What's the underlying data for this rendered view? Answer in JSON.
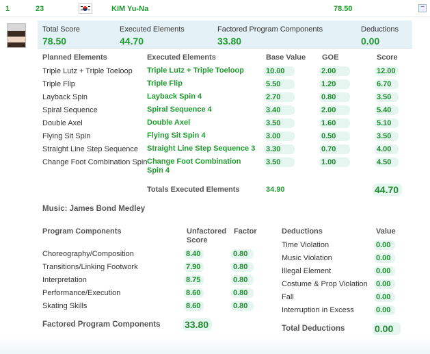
{
  "header": {
    "rank": "1",
    "start": "23",
    "skater": "KIM Yu-Na",
    "total": "78.50"
  },
  "summary": {
    "labels": [
      "Total Score",
      "Executed Elements",
      "Factored Program Components",
      "Deductions"
    ],
    "values": [
      "78.50",
      "44.70",
      "33.80",
      "0.00"
    ]
  },
  "elements": {
    "columns": [
      "Planned Elements",
      "Executed Elements",
      "Base Value",
      "GOE",
      "Score"
    ],
    "rows": [
      {
        "planned": "Triple Lutz + Triple Toeloop",
        "executed": "Triple Lutz + Triple Toeloop",
        "base": "10.00",
        "goe": "2.00",
        "score": "12.00"
      },
      {
        "planned": "Triple Flip",
        "executed": "Triple Flip",
        "base": "5.50",
        "goe": "1.20",
        "score": "6.70"
      },
      {
        "planned": "Layback Spin",
        "executed": "Layback Spin 4",
        "base": "2.70",
        "goe": "0.80",
        "score": "3.50"
      },
      {
        "planned": "Spiral Sequence",
        "executed": "Spiral Sequence 4",
        "base": "3.40",
        "goe": "2.00",
        "score": "5.40"
      },
      {
        "planned": "Double Axel",
        "executed": "Double Axel",
        "base": "3.50",
        "goe": "1.60",
        "score": "5.10"
      },
      {
        "planned": "Flying Sit Spin",
        "executed": "Flying Sit Spin 4",
        "base": "3.00",
        "goe": "0.50",
        "score": "3.50"
      },
      {
        "planned": "Straight Line Step Sequence",
        "executed": "Straight Line Step Sequence 3",
        "base": "3.30",
        "goe": "0.70",
        "score": "4.00"
      },
      {
        "planned": "Change Foot Combination Spin",
        "executed": "Change Foot Combination",
        "executed2": "Spin 4",
        "base": "3.50",
        "goe": "1.00",
        "score": "4.50"
      }
    ],
    "totals": {
      "label": "Totals Executed Elements",
      "base": "34.90",
      "score": "44.70"
    }
  },
  "music": "Music: James Bond Medley",
  "components": {
    "header": "Program Components",
    "unfactored_header": "Unfactored",
    "unfactored_header2": "Score",
    "factor_header": "Factor",
    "rows": [
      {
        "name": "Choreography/Composition",
        "score": "8.40",
        "factor": "0.80"
      },
      {
        "name": "Transitions/Linking Footwork",
        "score": "7.90",
        "factor": "0.80"
      },
      {
        "name": "Interpretation",
        "score": "8.75",
        "factor": "0.80"
      },
      {
        "name": "Performance/Execution",
        "score": "8.60",
        "factor": "0.80"
      },
      {
        "name": "Skating Skills",
        "score": "8.60",
        "factor": "0.80"
      }
    ],
    "total_label": "Factored Program Components",
    "total": "33.80"
  },
  "deductions": {
    "header": "Deductions",
    "value_header": "Value",
    "rows": [
      {
        "name": "Time Violation",
        "value": "0.00"
      },
      {
        "name": "Music Violation",
        "value": "0.00"
      },
      {
        "name": "Illegal Element",
        "value": "0.00"
      },
      {
        "name": "Costume & Prop Violation",
        "value": "0.00"
      },
      {
        "name": "Fall",
        "value": "0.00"
      },
      {
        "name": "Interruption in Excess",
        "value": "0.00"
      }
    ],
    "total_label": "Total Deductions",
    "total": "0.00"
  },
  "colors": {
    "accent": "#1e9b2e",
    "panel": "#e4f2f7",
    "pill": "#e4f6ef"
  }
}
